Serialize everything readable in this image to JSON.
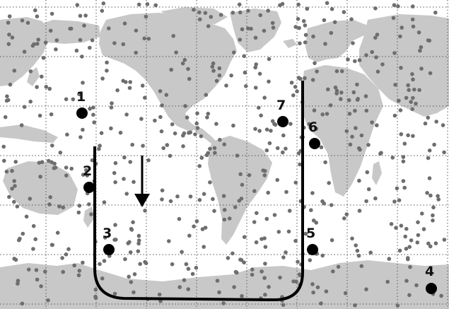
{
  "map": {
    "colors": {
      "ocean": "#ffffff",
      "land": "#c8c8c8",
      "grid": "#555555",
      "dots": "#6e6e6e",
      "stations": "#000000",
      "path": "#000000"
    },
    "icon": "down-arrow-icon",
    "stations": [
      {
        "label": "1"
      },
      {
        "label": "2"
      },
      {
        "label": "3"
      },
      {
        "label": "4"
      },
      {
        "label": "5"
      },
      {
        "label": "6"
      },
      {
        "label": "7"
      }
    ]
  }
}
